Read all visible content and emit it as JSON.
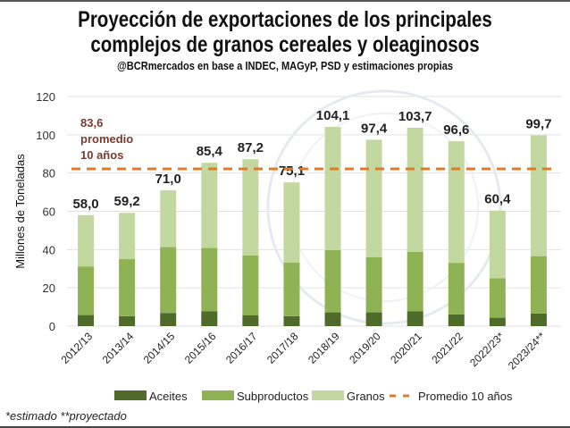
{
  "chart_data": {
    "type": "bar",
    "stacked": true,
    "title": "Proyección de exportaciones de los principales complejos de granos cereales y oleaginosos",
    "title_lines": [
      "Proyección de exportaciones de los principales",
      "complejos de granos cereales y oleaginosos"
    ],
    "subtitle": "@BCRmercados  en base a INDEC, MAGyP, PSD y estimaciones propias",
    "ylabel": "Millones de Toneladas",
    "xlabel": "",
    "ylim": [
      0,
      120
    ],
    "yticks": [
      0,
      20,
      40,
      60,
      80,
      100,
      120
    ],
    "grid": true,
    "legend_position": "bottom",
    "categories": [
      "2012/13",
      "2013/14",
      "2014/15",
      "2015/16",
      "2016/17",
      "2017/18",
      "2018/19",
      "2019/20",
      "2020/21",
      "2021/22",
      "2022/23*",
      "2023/24**"
    ],
    "series": [
      {
        "name": "Aceites",
        "color": "#4e6b2a",
        "values": [
          5.8,
          5.2,
          6.9,
          7.7,
          5.6,
          5.2,
          7.2,
          7.2,
          7.7,
          6.1,
          4.4,
          6.6
        ]
      },
      {
        "name": "Subproductos",
        "color": "#8fb354",
        "values": [
          25.4,
          29.8,
          34.4,
          33.2,
          31.4,
          28.1,
          32.6,
          28.9,
          31.2,
          27.0,
          20.6,
          30.0
        ]
      },
      {
        "name": "Granos",
        "color": "#c3d8a0",
        "values": [
          26.8,
          24.2,
          29.7,
          44.5,
          50.2,
          41.8,
          64.3,
          61.3,
          64.8,
          63.5,
          35.4,
          63.1
        ]
      }
    ],
    "totals": [
      "58,0",
      "59,2",
      "71,0",
      "85,4",
      "87,2",
      "75,1",
      "104,1",
      "97,4",
      "103,7",
      "96,6",
      "60,4",
      "99,7"
    ],
    "reference_line": {
      "name": "Promedio 10 años",
      "value": 83.6,
      "color": "#e07b28",
      "style": "dashed"
    },
    "annotation": [
      "83,6",
      "promedio",
      "10 años"
    ],
    "annotation_color": "#7a3b2e"
  },
  "footnote": "*estimado  **proyectado"
}
